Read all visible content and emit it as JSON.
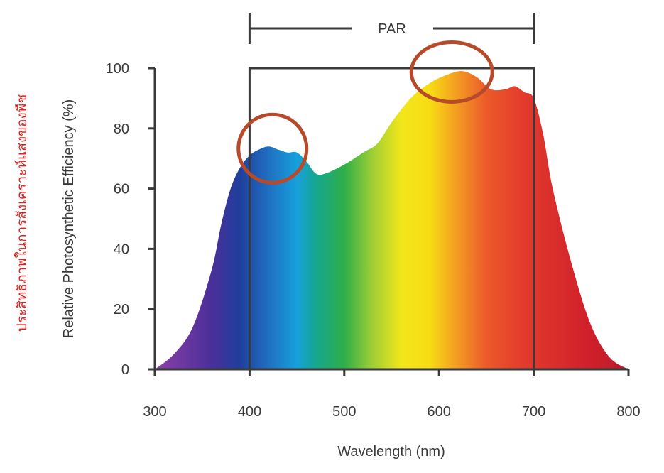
{
  "chart_data": {
    "type": "area",
    "title": "",
    "xlabel": "Wavelength (nm)",
    "ylabel": "Relative Photosynthetic Efficiency (%)",
    "xlim": [
      300,
      800
    ],
    "ylim": [
      0,
      100
    ],
    "xticks": [
      "300",
      "400",
      "500",
      "600",
      "700",
      "800"
    ],
    "yticks": [
      "0",
      "20",
      "40",
      "60",
      "80",
      "100"
    ],
    "x": [
      300,
      320,
      340,
      360,
      370,
      380,
      390,
      400,
      410,
      420,
      430,
      440,
      450,
      460,
      470,
      480,
      500,
      520,
      535,
      550,
      570,
      590,
      610,
      625,
      640,
      655,
      670,
      680,
      690,
      700,
      710,
      720,
      740,
      760,
      780,
      800
    ],
    "values": [
      0,
      5,
      14,
      33,
      48,
      60,
      67,
      71,
      73,
      74,
      73,
      72,
      72,
      69,
      65,
      65,
      68,
      72,
      75,
      82,
      90,
      95,
      98,
      99,
      97,
      93,
      93,
      94,
      92,
      90,
      78,
      60,
      35,
      15,
      4,
      0
    ],
    "color_stops": [
      {
        "nm": 300,
        "color": "#8e3fa6"
      },
      {
        "nm": 360,
        "color": "#4a2f9a"
      },
      {
        "nm": 390,
        "color": "#1f3f9c"
      },
      {
        "nm": 420,
        "color": "#1f6fc1"
      },
      {
        "nm": 450,
        "color": "#16a0dc"
      },
      {
        "nm": 470,
        "color": "#16a78f"
      },
      {
        "nm": 500,
        "color": "#2fae48"
      },
      {
        "nm": 530,
        "color": "#9fcf35"
      },
      {
        "nm": 560,
        "color": "#f2e61a"
      },
      {
        "nm": 590,
        "color": "#f7dd14"
      },
      {
        "nm": 620,
        "color": "#f39a22"
      },
      {
        "nm": 650,
        "color": "#ec5a2a"
      },
      {
        "nm": 690,
        "color": "#e23a2c"
      },
      {
        "nm": 760,
        "color": "#cf1f2b"
      },
      {
        "nm": 800,
        "color": "#b81e2c"
      }
    ],
    "annotations": [
      {
        "label": "PAR",
        "x_range": [
          400,
          700
        ],
        "y_top": 100
      }
    ],
    "highlight_circles": [
      {
        "x": 422,
        "y": 74,
        "color": "#b74a2a"
      },
      {
        "x": 612,
        "y": 98,
        "color": "#b74a2a"
      }
    ],
    "grid": false,
    "legend": "none"
  },
  "side_note": "ประสิทธิภาพในการสังเคราะห์แสงของพืช",
  "axis_color": "#3a3a3a"
}
